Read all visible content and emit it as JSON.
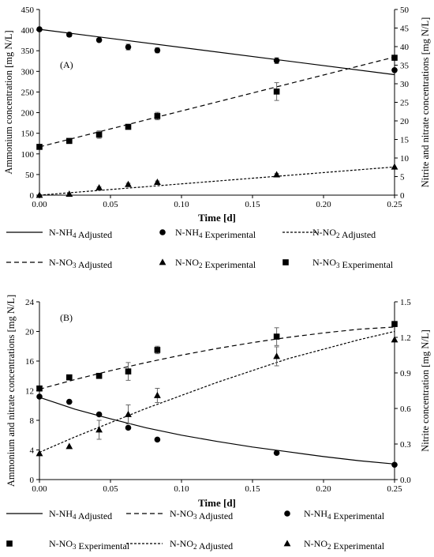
{
  "chart_data": [
    {
      "type": "line",
      "panel_label": "(A)",
      "xlabel": "Time [d]",
      "ylabel": "Ammonium concentration [mg N/L]",
      "y2label": "Nitrite and nitrate concentrations [mg N/L]",
      "xlim": [
        0,
        0.25
      ],
      "ylim": [
        0,
        450
      ],
      "y2lim": [
        0,
        50
      ],
      "xticks": [
        "0.00",
        "0.05",
        "0.10",
        "0.15",
        "0.20",
        "0.25"
      ],
      "yticks": [
        "0",
        "50",
        "100",
        "150",
        "200",
        "250",
        "300",
        "350",
        "400",
        "450"
      ],
      "y2ticks": [
        "0",
        "5",
        "10",
        "15",
        "20",
        "25",
        "30",
        "35",
        "40",
        "45",
        "50"
      ],
      "grid": false,
      "legend_position": "below",
      "series": [
        {
          "name": "N-NH₄ Adjusted",
          "kind": "line",
          "style": "solid",
          "axis": "left",
          "x": [
            0,
            0.25
          ],
          "y": [
            402,
            292
          ]
        },
        {
          "name": "N-NH₄ Experimental",
          "kind": "points",
          "marker": "circle",
          "axis": "left",
          "x": [
            0,
            0.021,
            0.042,
            0.0625,
            0.083,
            0.167,
            0.25
          ],
          "y": [
            402,
            389,
            376,
            359,
            351,
            326,
            303
          ],
          "err": [
            0,
            5,
            4,
            7,
            6,
            7,
            0
          ]
        },
        {
          "name": "N-NO₂ Adjusted",
          "kind": "line",
          "style": "dotted",
          "axis": "right",
          "x": [
            0,
            0.25
          ],
          "y": [
            0,
            7.6
          ]
        },
        {
          "name": "N-NO₃ Adjusted",
          "kind": "line",
          "style": "dashed",
          "axis": "right",
          "x": [
            0,
            0.25
          ],
          "y": [
            13,
            37.2
          ]
        },
        {
          "name": "N-NO₂ Experimental",
          "kind": "points",
          "marker": "triangle",
          "axis": "right",
          "x": [
            0,
            0.021,
            0.042,
            0.0625,
            0.083,
            0.167,
            0.25
          ],
          "y": [
            0,
            0.3,
            2.0,
            2.9,
            3.5,
            5.5,
            7.6
          ],
          "err": [
            0,
            0,
            0.2,
            0.3,
            0.3,
            0.3,
            0
          ]
        },
        {
          "name": "N-NO₃ Experimental",
          "kind": "points",
          "marker": "square",
          "axis": "right",
          "x": [
            0,
            0.021,
            0.042,
            0.0625,
            0.083,
            0.167,
            0.25
          ],
          "y": [
            13,
            14.6,
            16.3,
            18.4,
            21.3,
            27.9,
            37
          ],
          "err": [
            0,
            0.4,
            1.0,
            0.4,
            1.0,
            2.4,
            0
          ]
        }
      ],
      "legend": [
        [
          "N-NH₄ Adjusted",
          "N-NH₄ Experimental",
          "N-NO₂ Adjusted"
        ],
        [
          "N-NO₃ Adjusted",
          "N-NO₂ Experimental",
          "N-NO₃ Experimental"
        ]
      ]
    },
    {
      "type": "line",
      "panel_label": "(B)",
      "xlabel": "Time [d]",
      "ylabel": "Ammonium and nitrate concentrations [mg N/L]",
      "y2label": "Nitrite concentration [mg N/L]",
      "xlim": [
        0,
        0.25
      ],
      "ylim": [
        0,
        24
      ],
      "y2lim": [
        0,
        1.5
      ],
      "xticks": [
        "0.00",
        "0.05",
        "0.10",
        "0.15",
        "0.20",
        "0.25"
      ],
      "yticks": [
        "0",
        "4",
        "8",
        "12",
        "16",
        "20",
        "24"
      ],
      "y2ticks": [
        "0.0",
        "0.3",
        "0.6",
        "0.9",
        "1.2",
        "1.5"
      ],
      "grid": false,
      "legend_position": "below",
      "series": [
        {
          "name": "N-NH₄ Adjusted",
          "kind": "curve",
          "style": "solid",
          "axis": "left",
          "x": [
            0,
            0.025,
            0.05,
            0.075,
            0.1,
            0.125,
            0.15,
            0.175,
            0.2,
            0.225,
            0.25
          ],
          "y": [
            11.1,
            9.5,
            8.2,
            7.0,
            6.0,
            5.15,
            4.4,
            3.75,
            3.1,
            2.55,
            2.1
          ]
        },
        {
          "name": "N-NO₃ Adjusted",
          "kind": "curve",
          "style": "dashed",
          "axis": "left",
          "x": [
            0,
            0.025,
            0.05,
            0.075,
            0.1,
            0.125,
            0.15,
            0.175,
            0.2,
            0.225,
            0.25
          ],
          "y": [
            12.2,
            13.5,
            14.7,
            15.8,
            16.8,
            17.7,
            18.5,
            19.2,
            19.8,
            20.3,
            20.6
          ]
        },
        {
          "name": "N-NH₄ Experimental",
          "kind": "points",
          "marker": "circle",
          "axis": "left",
          "x": [
            0,
            0.021,
            0.042,
            0.0625,
            0.083,
            0.167,
            0.25
          ],
          "y": [
            11.2,
            10.5,
            8.8,
            7.0,
            5.4,
            3.6,
            2.0
          ],
          "err": [
            0,
            0,
            0,
            0,
            0,
            0,
            0
          ]
        },
        {
          "name": "N-NO₃ Experimental",
          "kind": "points",
          "marker": "square",
          "axis": "left",
          "x": [
            0,
            0.021,
            0.042,
            0.0625,
            0.083,
            0.167,
            0.25
          ],
          "y": [
            12.3,
            13.8,
            14.0,
            14.6,
            17.5,
            19.3,
            21.0
          ],
          "err": [
            0,
            0,
            0,
            1.2,
            0.5,
            1.2,
            0
          ]
        },
        {
          "name": "N-NO₂ Adjusted",
          "kind": "curve",
          "style": "dotted",
          "axis": "right",
          "x": [
            0,
            0.025,
            0.05,
            0.075,
            0.1,
            0.125,
            0.15,
            0.175,
            0.2,
            0.225,
            0.25
          ],
          "y": [
            0.23,
            0.36,
            0.48,
            0.6,
            0.71,
            0.82,
            0.92,
            1.02,
            1.1,
            1.18,
            1.25
          ]
        },
        {
          "name": "N-NO₂ Experimental",
          "kind": "points",
          "marker": "triangle",
          "axis": "right",
          "x": [
            0,
            0.021,
            0.042,
            0.0625,
            0.083,
            0.167,
            0.25
          ],
          "y": [
            0.22,
            0.28,
            0.42,
            0.55,
            0.71,
            1.04,
            1.18
          ],
          "err": [
            0,
            0,
            0.08,
            0.08,
            0.06,
            0.08,
            0
          ]
        }
      ],
      "legend": [
        [
          "N-NH₄ Adjusted",
          "N-NO₃ Adjusted",
          "N-NH₄ Experimental"
        ],
        [
          "N-NO₃ Experimental",
          "N-NO₂ Adjusted",
          "N-NO₂ Experimental"
        ]
      ]
    }
  ]
}
